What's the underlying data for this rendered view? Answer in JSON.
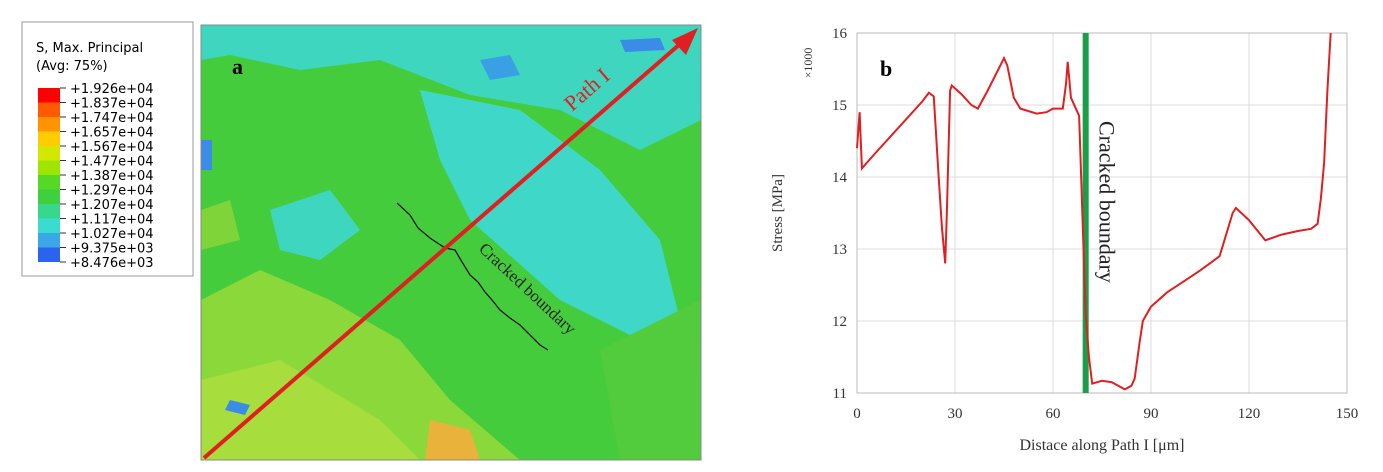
{
  "contour_panel": {
    "label": "a",
    "legend_title": [
      "S, Max. Principal",
      "(Avg: 75%)"
    ],
    "legend_levels": [
      "+1.926e+04",
      "+1.837e+04",
      "+1.747e+04",
      "+1.657e+04",
      "+1.567e+04",
      "+1.477e+04",
      "+1.387e+04",
      "+1.297e+04",
      "+1.207e+04",
      "+1.117e+04",
      "+1.027e+04",
      "+9.375e+03",
      "+8.476e+03"
    ],
    "path_label": "Path I",
    "crack_label": "Cracked boundary"
  },
  "chart_data": {
    "type": "line",
    "label": "b",
    "xlabel": "Distace along Path I [μm]",
    "ylabel": "Stress [MPa]",
    "y_multiplier": "×1000",
    "x": [
      0,
      0.8,
      1.5,
      5,
      10,
      15,
      20,
      22,
      23.5,
      25,
      26,
      27,
      27.5,
      28.5,
      29,
      32,
      35,
      37,
      40,
      45,
      46,
      48,
      50,
      55,
      58,
      60,
      63,
      64,
      64.5,
      65.5,
      67,
      68,
      70,
      71,
      72,
      75,
      78,
      82,
      84,
      85,
      86.5,
      87.5,
      90,
      95,
      100,
      105,
      108,
      111,
      115,
      116,
      120,
      125,
      130,
      135,
      139,
      141,
      142,
      143,
      144,
      145
    ],
    "series": [
      {
        "color": "#e02020",
        "values": [
          14.4,
          14.9,
          14.12,
          14.3,
          14.55,
          14.8,
          15.05,
          15.17,
          15.12,
          14.0,
          13.3,
          12.8,
          13.5,
          15.2,
          15.27,
          15.15,
          15.0,
          14.95,
          15.2,
          15.65,
          15.55,
          15.1,
          14.95,
          14.88,
          14.9,
          14.95,
          14.95,
          15.3,
          15.6,
          15.1,
          14.95,
          14.85,
          12.1,
          11.5,
          11.13,
          11.17,
          11.15,
          11.05,
          11.1,
          11.2,
          11.7,
          12.0,
          12.2,
          12.4,
          12.55,
          12.7,
          12.8,
          12.9,
          13.5,
          13.57,
          13.4,
          13.12,
          13.2,
          13.25,
          13.28,
          13.35,
          13.7,
          14.2,
          15.2,
          16.0
        ]
      }
    ],
    "xlim": [
      0,
      150
    ],
    "xticks": [
      0,
      30,
      60,
      90,
      120,
      150
    ],
    "ylim": [
      11,
      16
    ],
    "yticks": [
      11,
      12,
      13,
      14,
      15,
      16
    ],
    "grid": true,
    "annotation": {
      "text": "Cracked boundary",
      "x": 70,
      "color": "#1a9e4a"
    }
  }
}
